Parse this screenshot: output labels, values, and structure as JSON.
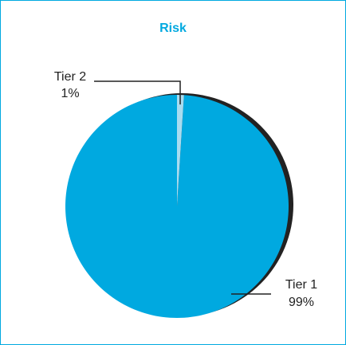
{
  "chart_data": {
    "type": "pie",
    "title": "Risk",
    "slices": [
      {
        "name": "Tier 1",
        "value": 99,
        "label": "99%"
      },
      {
        "name": "Tier 2",
        "value": 1,
        "label": "1%"
      }
    ]
  },
  "colors": {
    "tier1": "#00a9e0",
    "tier2": "#a9dcf0",
    "shadow": "#222222",
    "frame": "#00a9e0"
  }
}
